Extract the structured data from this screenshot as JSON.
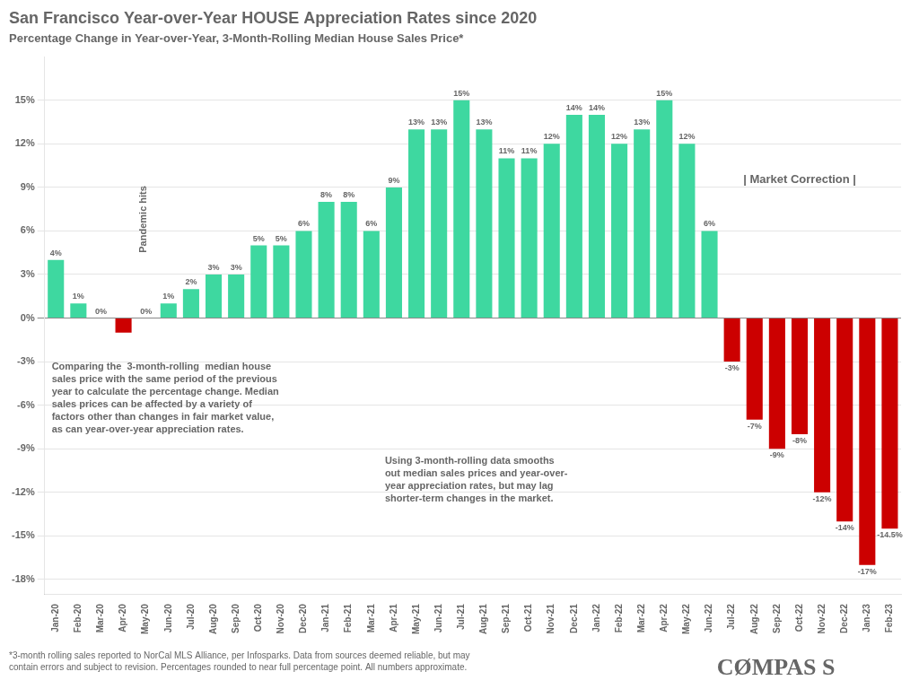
{
  "chart_data": {
    "type": "bar",
    "title": "San Francisco Year-over-Year HOUSE Appreciation Rates since 2020",
    "subtitle": "Percentage Change in Year-over-Year, 3-Month-Rolling Median House Sales Price*",
    "categories": [
      "Jan-20",
      "Feb-20",
      "Mar-20",
      "Apr-20",
      "May-20",
      "Jun-20",
      "Jul-20",
      "Aug-20",
      "Sep-20",
      "Oct-20",
      "Nov-20",
      "Dec-20",
      "Jan-21",
      "Feb-21",
      "Mar-21",
      "Apr-21",
      "May-21",
      "Jun-21",
      "Jul-21",
      "Aug-21",
      "Sep-21",
      "Oct-21",
      "Nov-21",
      "Dec-21",
      "Jan-22",
      "Feb-22",
      "Mar-22",
      "Apr-22",
      "May-22",
      "Jun-22",
      "Jul-22",
      "Aug-22",
      "Sep-22",
      "Oct-22",
      "Nov-22",
      "Dec-22",
      "Jan-23",
      "Feb-23"
    ],
    "values": [
      4,
      1,
      0,
      -1,
      0,
      1,
      2,
      3,
      3,
      5,
      5,
      6,
      8,
      8,
      6,
      9,
      13,
      13,
      15,
      13,
      11,
      11,
      12,
      14,
      14,
      12,
      13,
      15,
      12,
      6,
      -3,
      -7,
      -9,
      -8,
      -12,
      -14,
      -17,
      -14.5
    ],
    "value_labels": [
      "4%",
      "1%",
      "0%",
      null,
      "0%",
      "1%",
      "2%",
      "3%",
      "3%",
      "5%",
      "5%",
      "6%",
      "8%",
      "8%",
      "6%",
      "9%",
      "13%",
      "13%",
      "15%",
      "13%",
      "11%",
      "11%",
      "12%",
      "14%",
      "14%",
      "12%",
      "13%",
      "15%",
      "12%",
      "6%",
      "-3%",
      "-7%",
      "-9%",
      "-8%",
      "-12%",
      "-14%",
      "-17%",
      "-14.5%"
    ],
    "colors": [
      "#3ed8a0",
      "#3ed8a0",
      "#3ed8a0",
      "#cc0000",
      "#3ed8a0",
      "#3ed8a0",
      "#3ed8a0",
      "#3ed8a0",
      "#3ed8a0",
      "#3ed8a0",
      "#3ed8a0",
      "#3ed8a0",
      "#3ed8a0",
      "#3ed8a0",
      "#3ed8a0",
      "#3ed8a0",
      "#3ed8a0",
      "#3ed8a0",
      "#3ed8a0",
      "#3ed8a0",
      "#3ed8a0",
      "#3ed8a0",
      "#3ed8a0",
      "#3ed8a0",
      "#3ed8a0",
      "#3ed8a0",
      "#3ed8a0",
      "#3ed8a0",
      "#3ed8a0",
      "#3ed8a0",
      "#cc0000",
      "#cc0000",
      "#cc0000",
      "#cc0000",
      "#cc0000",
      "#cc0000",
      "#cc0000",
      "#cc0000"
    ],
    "data_labels": true,
    "ylim": [
      -19,
      18
    ],
    "yticks": [
      {
        "value": -18,
        "label": "-18%"
      },
      {
        "value": -15,
        "label": "-15%"
      },
      {
        "value": -12,
        "label": "-12%"
      },
      {
        "value": -9,
        "label": "-9%"
      },
      {
        "value": -6,
        "label": "-6%"
      },
      {
        "value": -3,
        "label": "-3%"
      },
      {
        "value": 0,
        "label": "0%"
      },
      {
        "value": 3,
        "label": "3%"
      },
      {
        "value": 6,
        "label": "6%"
      },
      {
        "value": 9,
        "label": "9%"
      },
      {
        "value": 12,
        "label": "12%"
      },
      {
        "value": 15,
        "label": "15%"
      }
    ],
    "grid": true,
    "annotations": [
      "Pandemic hits",
      "| Market Correction |",
      "Comparing the  3-month-rolling  median house\nsales price with the same period of the previous\nyear to calculate the percentage change. Median\nsales prices can be affected by a variety of\nfactors other than changes in fair market value,\nas can year-over-year appreciation rates.",
      "Using 3-month-rolling data smooths\nout median sales prices and year-over-\nyear appreciation rates, but may lag\nshorter-term changes in the market.",
      "*3-month rolling sales reported to NorCal MLS Alliance, per Infosparks. Data from sources deemed reliable, but may\ncontain errors and subject to revision. Percentages rounded to near full percentage point. All numbers approximate.",
      "CØMPAS S"
    ]
  }
}
